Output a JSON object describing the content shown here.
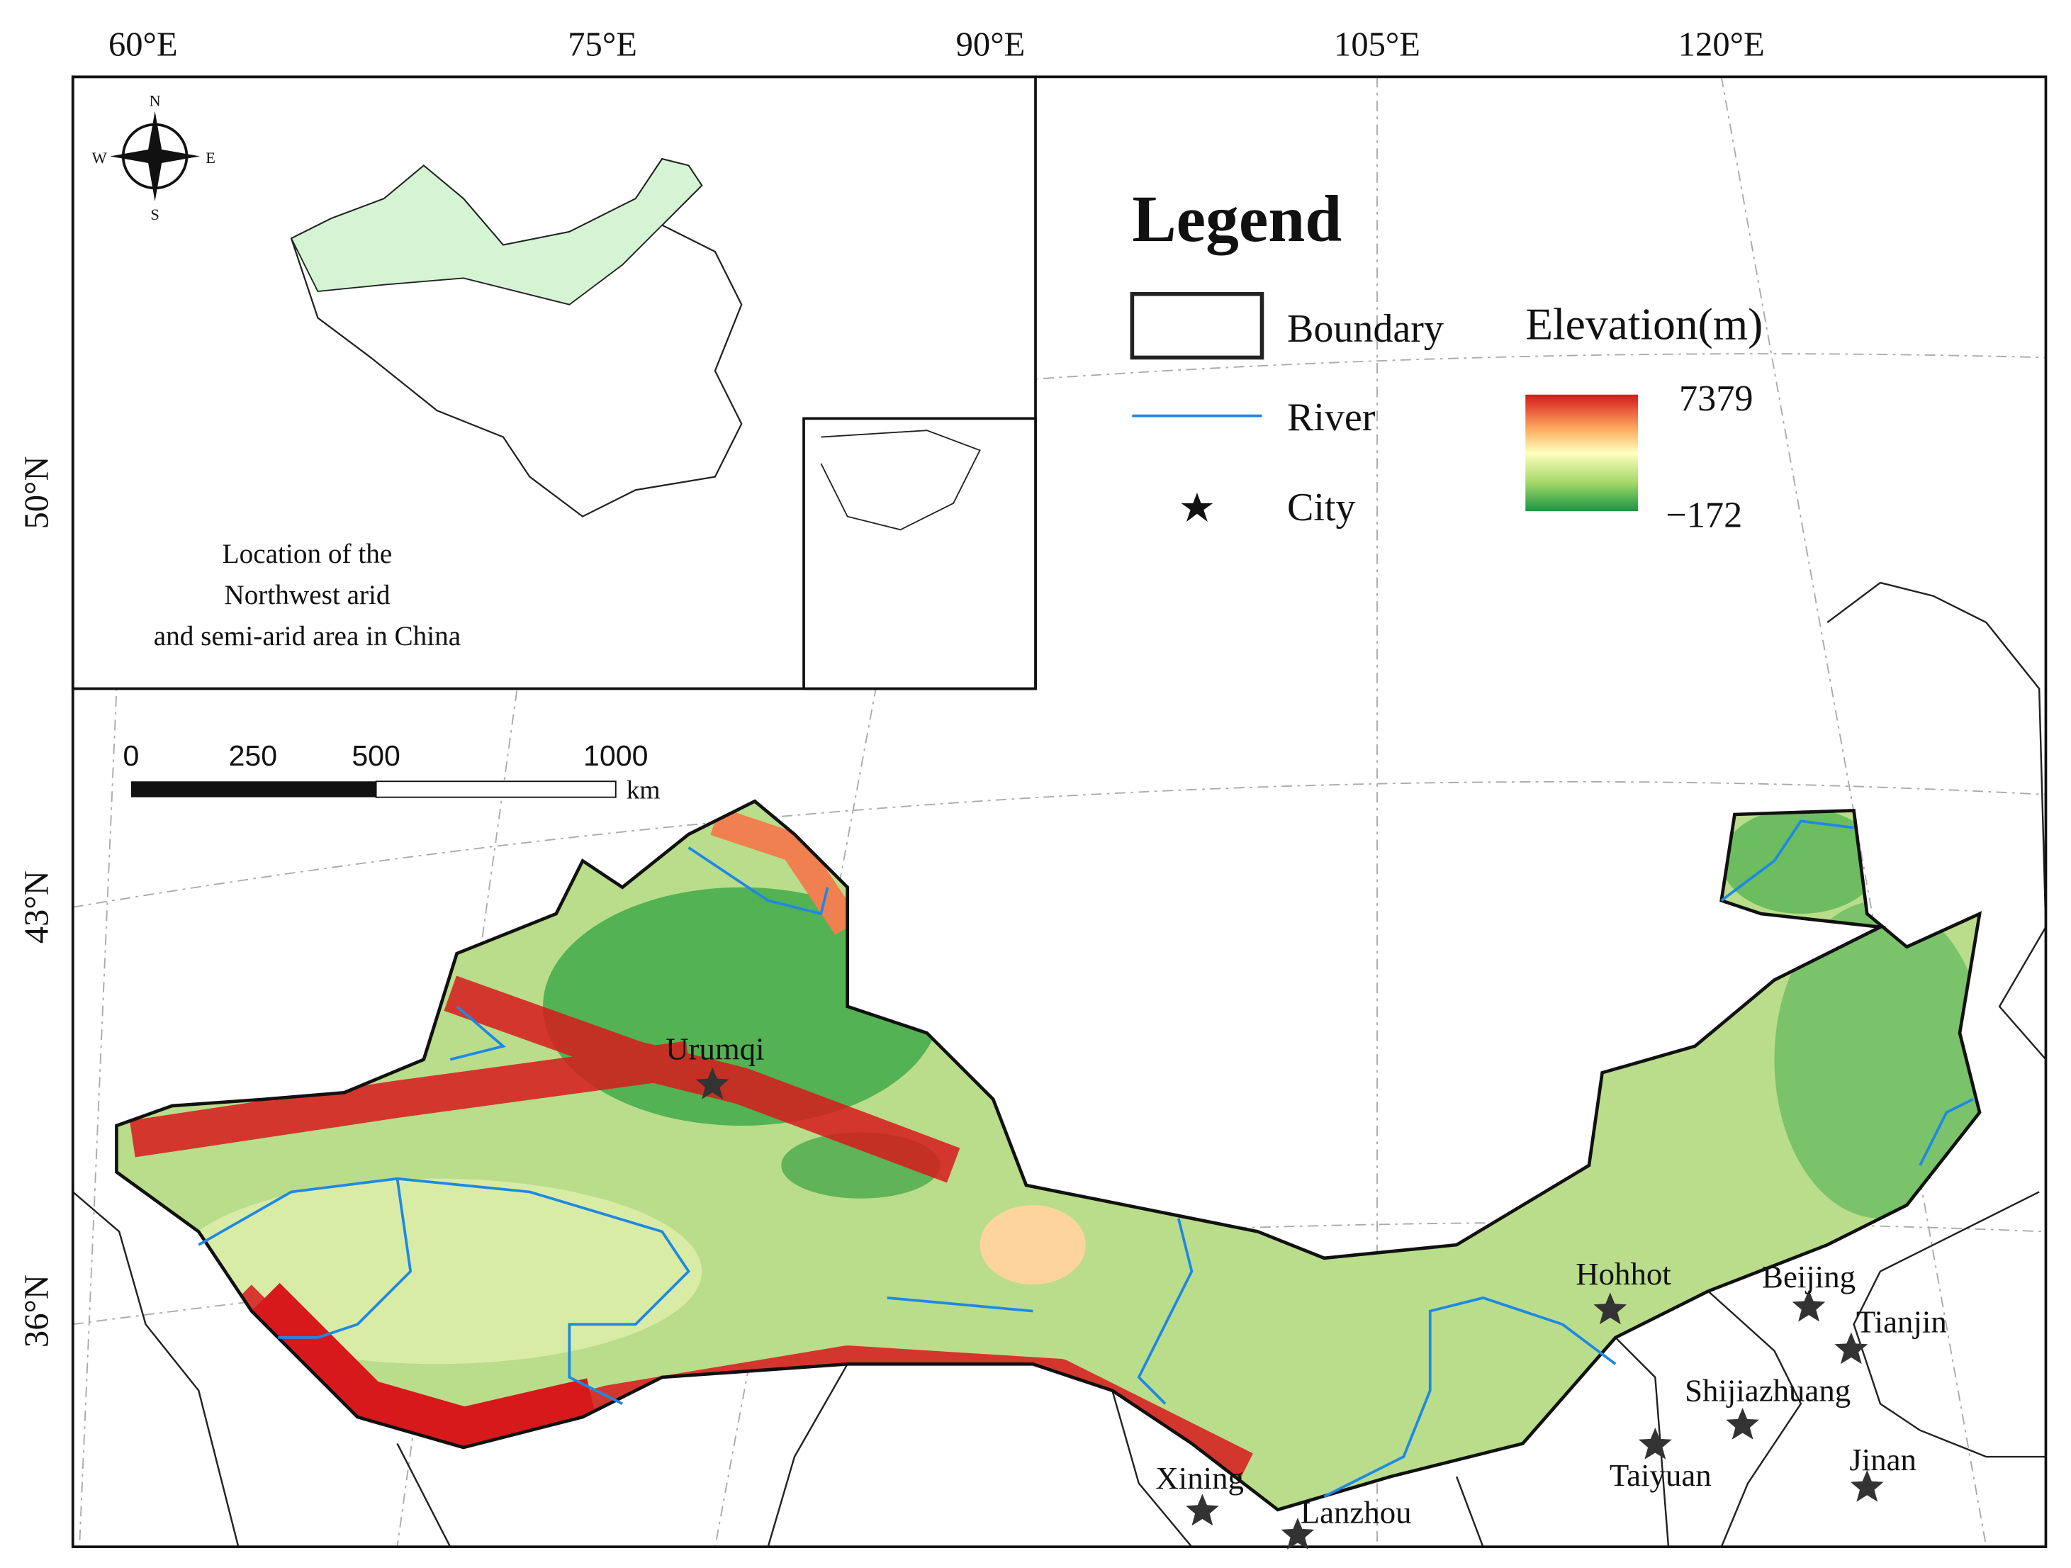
{
  "longitude_labels": [
    "60°E",
    "75°E",
    "90°E",
    "105°E",
    "120°E"
  ],
  "latitude_labels": [
    "50°N",
    "43°N",
    "36°N"
  ],
  "compass": {
    "n": "N",
    "s": "S",
    "e": "E",
    "w": "W"
  },
  "inset_caption": [
    "Location of the",
    "Northwest arid",
    "and semi-arid area in China"
  ],
  "legend": {
    "title": "Legend",
    "boundary": "Boundary",
    "river": "River",
    "city": "City",
    "elevation_title": "Elevation(m)",
    "elevation_max": "7379",
    "elevation_min": "−172"
  },
  "scale_bar": {
    "labels": [
      "0",
      "250",
      "500",
      "1000"
    ],
    "unit": "km"
  },
  "cities": [
    "Urumqi",
    "Hohhot",
    "Beijing",
    "Tianjin",
    "Shijiazhuang",
    "Taiyuan",
    "Jinan",
    "Xining",
    "Lanzhou"
  ]
}
